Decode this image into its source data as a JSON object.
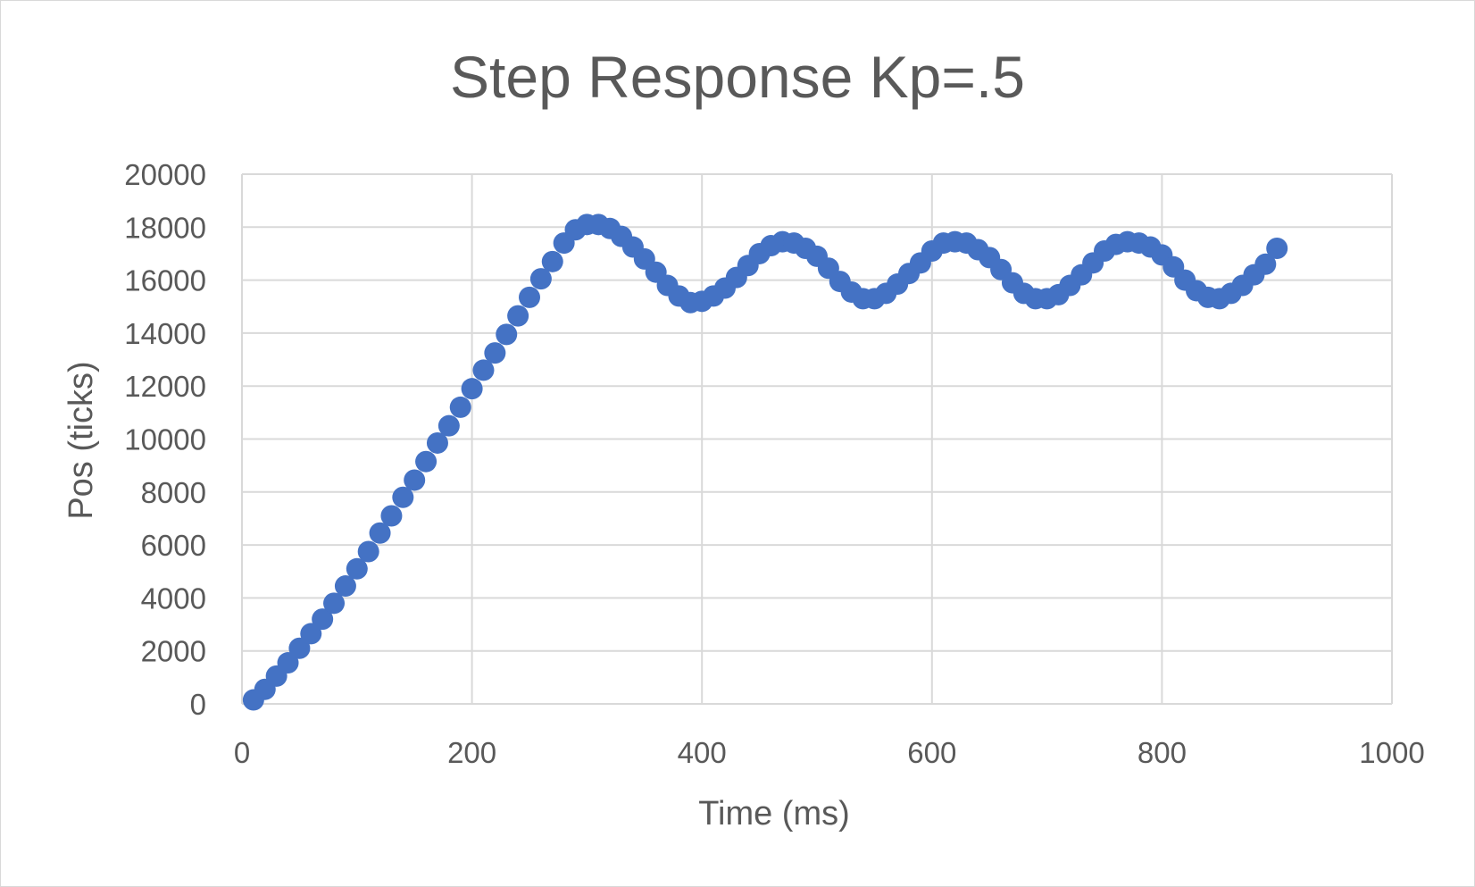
{
  "chart_data": {
    "type": "scatter",
    "title": "Step Response Kp=.5",
    "xlabel": "Time (ms)",
    "ylabel": "Pos (ticks)",
    "xlim": [
      0,
      1000
    ],
    "ylim": [
      0,
      20000
    ],
    "x_ticks": [
      0,
      200,
      400,
      600,
      800,
      1000
    ],
    "y_ticks": [
      0,
      2000,
      4000,
      6000,
      8000,
      10000,
      12000,
      14000,
      16000,
      18000,
      20000
    ],
    "grid": true,
    "legend": "none",
    "marker_color": "#4472c4",
    "series": [
      {
        "x": [
          10,
          20,
          30,
          40,
          50,
          60,
          70,
          80,
          90,
          100,
          110,
          120,
          130,
          140,
          150,
          160,
          170,
          180,
          190,
          200,
          210,
          220,
          230,
          240,
          250,
          260,
          270,
          280,
          290,
          300,
          310,
          320,
          330,
          340,
          350,
          360,
          370,
          380,
          390,
          400,
          410,
          420,
          430,
          440,
          450,
          460,
          470,
          480,
          490,
          500,
          510,
          520,
          530,
          540,
          550,
          560,
          570,
          580,
          590,
          600,
          610,
          620,
          630,
          640,
          650,
          660,
          670,
          680,
          690,
          700,
          710,
          720,
          730,
          740,
          750,
          760,
          770,
          780,
          790,
          800,
          810,
          820,
          830,
          840,
          850,
          860,
          870,
          880,
          890,
          900
        ],
        "y": [
          150,
          550,
          1050,
          1550,
          2100,
          2650,
          3200,
          3800,
          4450,
          5100,
          5750,
          6450,
          7100,
          7800,
          8450,
          9150,
          9850,
          10500,
          11200,
          11900,
          12600,
          13250,
          13950,
          14650,
          15350,
          16050,
          16700,
          17400,
          17900,
          18100,
          18100,
          17950,
          17650,
          17250,
          16800,
          16300,
          15800,
          15400,
          15150,
          15200,
          15400,
          15700,
          16100,
          16550,
          17000,
          17300,
          17450,
          17400,
          17200,
          16900,
          16450,
          15950,
          15550,
          15300,
          15300,
          15500,
          15850,
          16250,
          16650,
          17100,
          17400,
          17450,
          17400,
          17150,
          16850,
          16400,
          15900,
          15500,
          15300,
          15300,
          15450,
          15800,
          16200,
          16650,
          17100,
          17350,
          17450,
          17400,
          17250,
          16950,
          16500,
          16000,
          15600,
          15350,
          15300,
          15500,
          15800,
          16200,
          16600,
          17200
        ]
      }
    ]
  }
}
